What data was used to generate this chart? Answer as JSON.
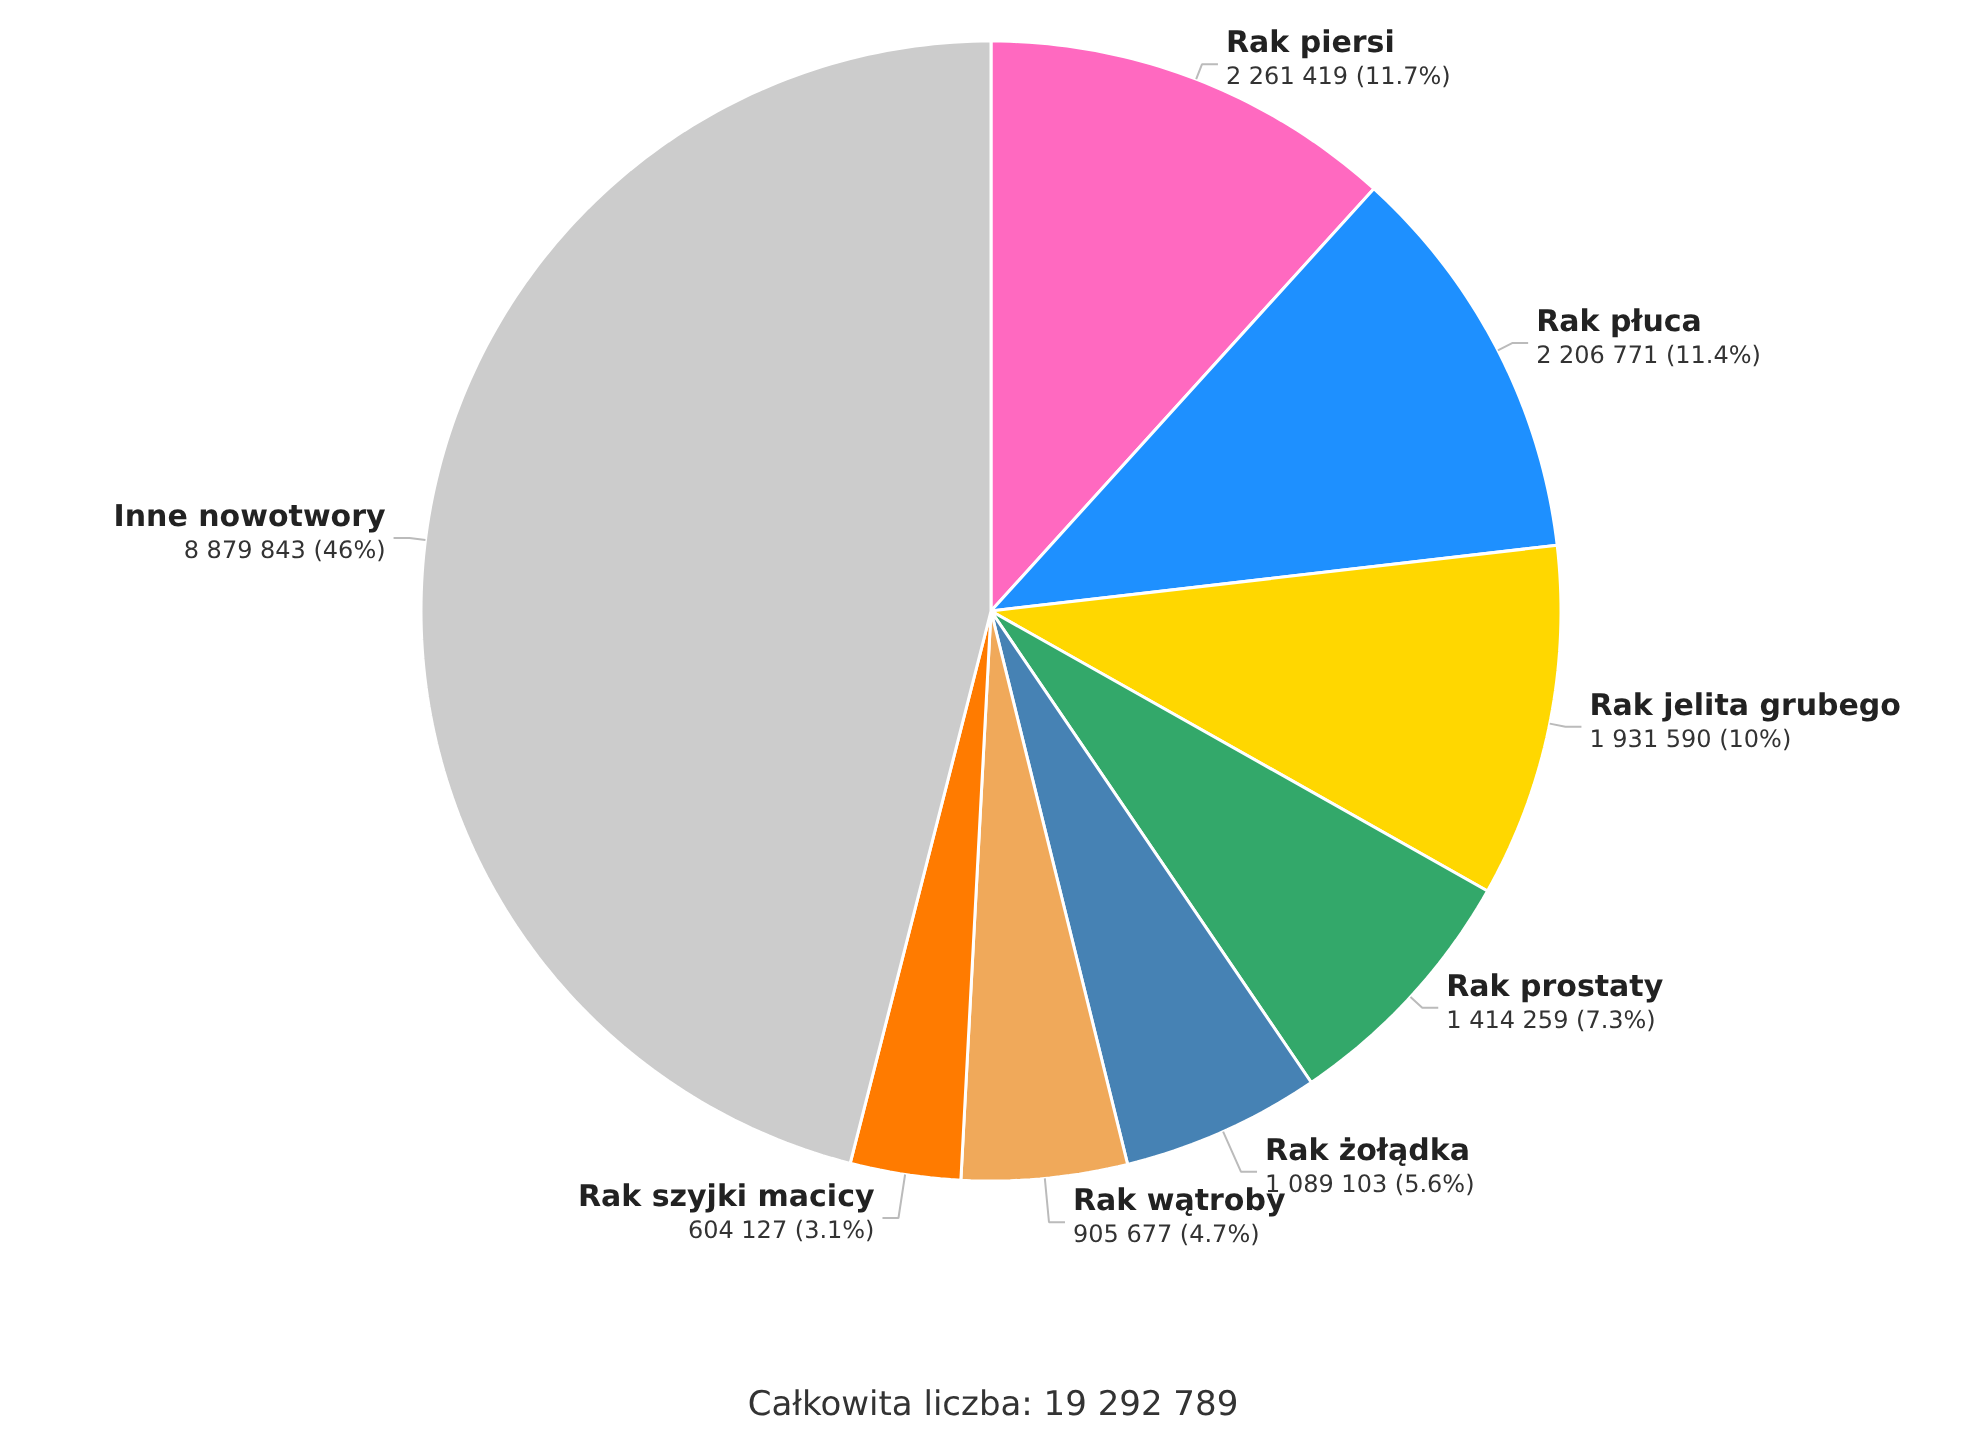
{
  "chart_data": {
    "type": "pie",
    "categories": [
      "Rak piersi",
      "Rak płuca",
      "Rak jelita grubego",
      "Rak prostaty",
      "Rak żołądka",
      "Rak wątroby",
      "Rak szyjki macicy",
      "Inne nowotwory"
    ],
    "values": [
      2261419,
      2206771,
      1931590,
      1414259,
      1089103,
      905677,
      604127,
      8879843
    ],
    "colors": [
      "#ff69c0",
      "#1e90ff",
      "#ffd700",
      "#33a86a",
      "#4682b4",
      "#f0a95a",
      "#ff7b00",
      "#cccccc"
    ],
    "value_labels": [
      "2 261 419 (11.7%)",
      "2 206 771 (11.4%)",
      "1 931 590 (10%)",
      "1 414 259 (7.3%)",
      "1 089 103 (5.6%)",
      "905 677 (4.7%)",
      "604 127 (3.1%)",
      "8 879 843 (46%)"
    ],
    "annotations": [
      "Całkowita liczba: 19 292 789"
    ]
  }
}
